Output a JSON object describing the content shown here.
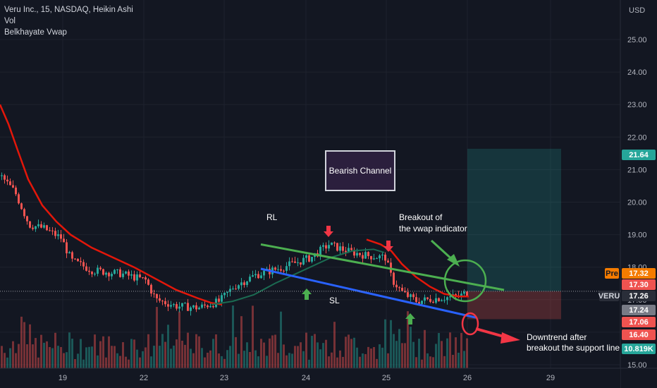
{
  "legend": {
    "line1": "Veru Inc., 15, NASDAQ, Heikin Ashi",
    "line2": "Vol",
    "line3": "Belkhayate Vwap"
  },
  "chart_data": {
    "type": "candlestick",
    "symbol": "VERU",
    "currency": "USD",
    "interval": "15",
    "y_ticks": [
      "25.00",
      "24.00",
      "23.00",
      "22.00",
      "21.00",
      "20.00",
      "19.00",
      "18.00",
      "17.00",
      "16.00",
      "15.00"
    ],
    "ylim": [
      15.0,
      26.5
    ],
    "x_ticks": [
      "19",
      "22",
      "23",
      "24",
      "25",
      "26",
      "29"
    ],
    "price_labels": [
      {
        "label": "21.64",
        "value": 21.64,
        "color": "#26a69a"
      },
      {
        "label": "17.32",
        "value": 17.32,
        "color": "#f57c00",
        "tag": "Pre"
      },
      {
        "label": "17.30",
        "value": 17.3,
        "color": "#ef5350"
      },
      {
        "label": "17.26",
        "value": 17.26,
        "color": "#2a2e39",
        "tag": "VERU"
      },
      {
        "label": "17.24",
        "value": 17.24,
        "color": "#787b86"
      },
      {
        "label": "17.06",
        "value": 17.06,
        "color": "#ef5350"
      },
      {
        "label": "16.40",
        "value": 16.4,
        "color": "#ef5350"
      },
      {
        "label": "10.819K",
        "value": 15.35,
        "color": "#26a69a"
      }
    ],
    "lines": [
      {
        "name": "RL",
        "color": "#4caf50",
        "from": [
          370,
          18.7
        ],
        "to": [
          715,
          17.3
        ]
      },
      {
        "name": "SL",
        "color": "#2962ff",
        "from": [
          370,
          17.95
        ],
        "to": [
          675,
          16.45
        ]
      }
    ],
    "vwap_red": [
      [
        0,
        23.0
      ],
      [
        12,
        22.4
      ],
      [
        25,
        21.6
      ],
      [
        40,
        20.7
      ],
      [
        60,
        19.9
      ],
      [
        80,
        19.4
      ],
      [
        100,
        19.0
      ],
      [
        130,
        18.6
      ],
      [
        160,
        18.3
      ],
      [
        190,
        18.0
      ],
      [
        220,
        17.65
      ],
      [
        250,
        17.3
      ],
      [
        280,
        17.05
      ],
      [
        300,
        16.9
      ],
      [
        315,
        16.85
      ]
    ],
    "vwap_green": [
      [
        300,
        16.85
      ],
      [
        330,
        16.95
      ],
      [
        360,
        17.15
      ],
      [
        390,
        17.5
      ],
      [
        420,
        17.8
      ],
      [
        450,
        18.1
      ],
      [
        470,
        18.3
      ],
      [
        500,
        18.5
      ],
      [
        530,
        18.55
      ],
      [
        545,
        18.45
      ]
    ],
    "vwap_red2": [
      [
        520,
        18.85
      ],
      [
        540,
        18.7
      ],
      [
        555,
        18.5
      ],
      [
        570,
        18.1
      ],
      [
        590,
        17.7
      ],
      [
        610,
        17.4
      ],
      [
        630,
        17.18
      ],
      [
        650,
        17.1
      ],
      [
        665,
        17.1
      ]
    ],
    "annotations": {
      "bearish_channel": "Bearish Channel",
      "breakout_vwap_1": "Breakout of",
      "breakout_vwap_2": "the vwap indicator",
      "downtrend_1": "Downtrend after",
      "downtrend_2": "breakout the support line",
      "rl": "RL",
      "sl": "SL"
    },
    "target_zone": {
      "from": 21.64,
      "to": 17.26,
      "color": "#26a69a"
    },
    "stop_zone": {
      "from": 17.26,
      "to": 16.4,
      "color": "#ef5350"
    }
  }
}
